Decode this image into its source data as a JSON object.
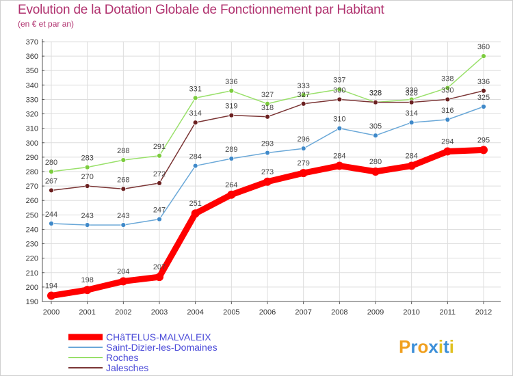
{
  "header": {
    "title": "Evolution de la Dotation Globale de Fonctionnement par Habitant",
    "subtitle": "(en € et par an)"
  },
  "brand": {
    "letters": [
      "P",
      "r",
      "o",
      "x",
      "i",
      "t",
      "i"
    ],
    "colors": [
      "#f0a020",
      "#3c8fd8",
      "#f0a020",
      "#3c8fd8",
      "#e0c020",
      "#3c8fd8",
      "#e0c020"
    ]
  },
  "chart_data": {
    "type": "line",
    "title": "Evolution de la Dotation Globale de Fonctionnement par Habitant",
    "ylabel": "(en € et par an)",
    "xlabel": "",
    "categories": [
      "2000",
      "2001",
      "2002",
      "2003",
      "2004",
      "2005",
      "2006",
      "2007",
      "2008",
      "2009",
      "2010",
      "2011",
      "2012"
    ],
    "ylim": [
      190,
      370
    ],
    "ystep": 10,
    "grid": true,
    "legend_position": "bottom-left",
    "series": [
      {
        "name": "CHâTELUS-MALVALEIX",
        "color": "#ff0000",
        "marker": "#ff0000",
        "weight": "bold",
        "values": [
          194,
          198,
          204,
          207,
          251,
          264,
          273,
          279,
          284,
          280,
          284,
          294,
          295
        ],
        "labels": [
          "194",
          "198",
          "204",
          "207",
          "251",
          "264",
          "273",
          "279",
          "284",
          "280",
          "284",
          "294",
          "295"
        ]
      },
      {
        "name": "Saint-Dizier-les-Domaines",
        "color": "#6aa8d8",
        "marker": "#3f89c9",
        "weight": "thin",
        "values": [
          244,
          243,
          243,
          247,
          284,
          289,
          293,
          296,
          310,
          305,
          314,
          316,
          325
        ],
        "labels": [
          "244",
          "243",
          "243",
          "247",
          "284",
          "289",
          "293",
          "296",
          "310",
          "305",
          "314",
          "316",
          "325"
        ]
      },
      {
        "name": "Roches",
        "color": "#99e06a",
        "marker": "#7ccc3e",
        "weight": "thin",
        "values": [
          280,
          283,
          288,
          291,
          331,
          336,
          327,
          333,
          337,
          328,
          330,
          338,
          360
        ],
        "labels": [
          "280",
          "283",
          "288",
          "291",
          "331",
          "336",
          "327",
          "333",
          "337",
          "328",
          "330",
          "338",
          "360"
        ]
      },
      {
        "name": "Jalesches",
        "color": "#7a3434",
        "marker": "#6b2020",
        "weight": "thin",
        "values": [
          267,
          270,
          268,
          272,
          314,
          319,
          318,
          327,
          330,
          328,
          328,
          330,
          336
        ],
        "labels": [
          "267",
          "270",
          "268",
          "272",
          "314",
          "319",
          "318",
          "327",
          "330",
          "328",
          "328",
          "330",
          "336"
        ]
      }
    ]
  }
}
